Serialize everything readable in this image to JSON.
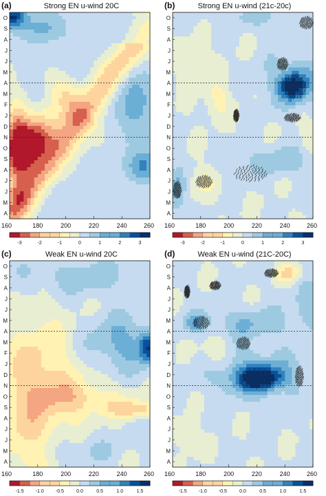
{
  "panels": [
    {
      "id": "a",
      "tag": "(a)",
      "title": "Strong EN u-wind 20C",
      "scale": "strong",
      "kind": "strong20"
    },
    {
      "id": "b",
      "tag": "(b)",
      "title": "Strong EN u-wind (21c-20c)",
      "scale": "strong",
      "kind": "strongdiff"
    },
    {
      "id": "c",
      "tag": "(c)",
      "title": "Weak EN u-wind 20C",
      "scale": "weak",
      "kind": "weak20"
    },
    {
      "id": "d",
      "tag": "(d)",
      "title": "Weak EN u-wind (21C-20C)",
      "scale": "weak",
      "kind": "weakdiff"
    }
  ],
  "month_labels": [
    "O",
    "S",
    "A",
    "J",
    "J",
    "M",
    "A",
    "M",
    "F",
    "J",
    "D",
    "N",
    "O",
    "S",
    "A",
    "J",
    "J",
    "M",
    "A"
  ],
  "x_ticks": [
    "160",
    "180",
    "200",
    "220",
    "240",
    "260"
  ],
  "reference_line_months": [
    "A",
    "N"
  ],
  "colorbars": {
    "strong": {
      "ticks": [
        "-3",
        "-2",
        "-1",
        "0",
        "1",
        "2",
        "3"
      ]
    },
    "weak": {
      "ticks": [
        "-1.5",
        "-1.0",
        "-0.5",
        "0.0",
        "0.5",
        "1.0",
        "1.5"
      ]
    }
  },
  "colors": {
    "palette": [
      "#b2182b",
      "#d6604d",
      "#f4a582",
      "#fdd49e",
      "#fff2b3",
      "#e8eed2",
      "#c6dbef",
      "#9ecae1",
      "#6baed6",
      "#3182bd",
      "#08519c",
      "#08306b"
    ],
    "neutral": "#e8eed2"
  },
  "chart_data": [
    {
      "type": "heatmap",
      "title": "Strong EN u-wind 20C",
      "x_ticks": [
        160,
        180,
        200,
        220,
        240,
        260
      ],
      "y_ticks": [
        "O",
        "S",
        "A",
        "J",
        "J",
        "M",
        "A",
        "M",
        "F",
        "J",
        "D",
        "N",
        "O",
        "S",
        "A",
        "J",
        "J",
        "M",
        "A"
      ],
      "colorbar_ticks": [
        -3,
        -2,
        -1,
        0,
        1,
        2,
        3
      ],
      "features": [
        {
          "region": "lon 165-195, months S-J (DJF)",
          "value": -3
        },
        {
          "region": "diagonal band from lon 160 (D) to lon 240 (J)",
          "value": -1.5
        },
        {
          "region": "lon 160-170, months O-S (top)",
          "value": 2
        }
      ]
    },
    {
      "type": "heatmap",
      "title": "Strong EN u-wind (21c-20c)",
      "x_ticks": [
        160,
        180,
        200,
        220,
        240,
        260
      ],
      "y_ticks": [
        "O",
        "S",
        "A",
        "J",
        "J",
        "M",
        "A",
        "M",
        "F",
        "J",
        "D",
        "N",
        "O",
        "S",
        "A",
        "J",
        "J",
        "M",
        "A"
      ],
      "colorbar_ticks": [
        -3,
        -2,
        -1,
        0,
        1,
        2,
        3
      ],
      "features": [
        {
          "region": "lon 230-255, months A-M (stippled)",
          "value": 1.5
        },
        {
          "region": "lon 160-165, months A-J (bottom)",
          "value": 1
        }
      ]
    },
    {
      "type": "heatmap",
      "title": "Weak EN u-wind 20C",
      "x_ticks": [
        160,
        180,
        200,
        220,
        240,
        260
      ],
      "y_ticks": [
        "O",
        "S",
        "A",
        "J",
        "J",
        "M",
        "A",
        "M",
        "F",
        "J",
        "D",
        "N",
        "O",
        "S",
        "A",
        "J",
        "J",
        "M",
        "A"
      ],
      "colorbar_ticks": [
        -1.5,
        -1.0,
        -0.5,
        0.0,
        0.5,
        1.0,
        1.5
      ],
      "features": [
        {
          "region": "lon 160-230, months A-N",
          "value": -0.5
        },
        {
          "region": "lon 220-260, months M-A",
          "value": 0.5
        },
        {
          "region": "lon 250-260, month M",
          "value": 1.0
        }
      ]
    },
    {
      "type": "heatmap",
      "title": "Weak EN u-wind (21C-20C)",
      "x_ticks": [
        160,
        180,
        200,
        220,
        240,
        260
      ],
      "y_ticks": [
        "O",
        "S",
        "A",
        "J",
        "J",
        "M",
        "A",
        "M",
        "F",
        "J",
        "D",
        "N",
        "O",
        "S",
        "A",
        "J",
        "J",
        "M",
        "A"
      ],
      "colorbar_ticks": [
        -1.5,
        -1.0,
        -0.5,
        0.0,
        0.5,
        1.0,
        1.5
      ],
      "features": [
        {
          "region": "lon 200-240, months D-O (stippled)",
          "value": 1.0
        },
        {
          "region": "lon 170-185, month J",
          "value": 0.5
        },
        {
          "region": "lon 230-245, month O (top)",
          "value": -0.5
        }
      ]
    }
  ]
}
